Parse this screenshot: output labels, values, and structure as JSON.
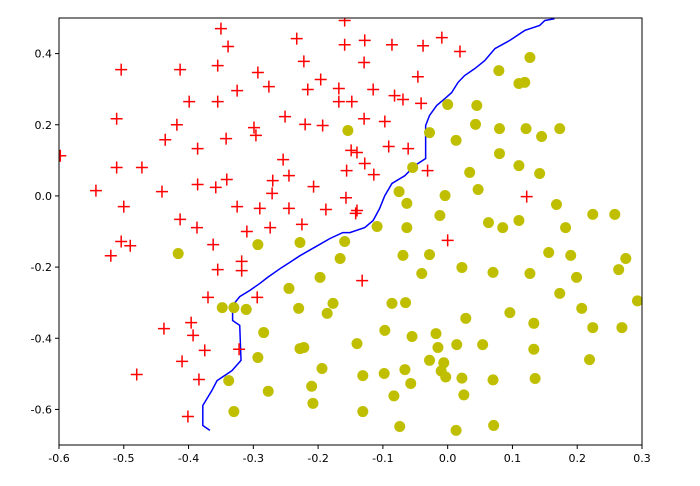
{
  "chart_data": {
    "type": "scatter",
    "xlim": [
      -0.6,
      0.3
    ],
    "ylim": [
      -0.7,
      0.5
    ],
    "xticks": [
      -0.6,
      -0.5,
      -0.4,
      -0.3,
      -0.2,
      -0.1,
      {
        "value": 0,
        "label": "0.0"
      },
      0.1,
      0.2,
      0.3
    ],
    "yticks": [
      -0.6,
      -0.4,
      -0.2,
      {
        "value": 0,
        "label": "0.0"
      },
      0.2,
      0.4
    ],
    "series": [
      {
        "type": "line",
        "color": "#0000ff",
        "x": [
          0.165,
          0.15,
          0.142,
          0.119,
          0.096,
          0.073,
          0.057,
          0.042,
          0.026,
          0.016,
          0.006,
          -0.004,
          -0.017,
          -0.028,
          -0.034,
          -0.034,
          -0.051,
          -0.066,
          -0.086,
          -0.097,
          -0.105,
          -0.115,
          -0.128,
          -0.151,
          -0.162,
          -0.182,
          -0.203,
          -0.228,
          -0.244,
          -0.256,
          -0.278,
          -0.29,
          -0.305,
          -0.321,
          -0.332,
          -0.332,
          -0.321,
          -0.319,
          -0.333,
          -0.356,
          -0.364,
          -0.378,
          -0.378,
          -0.367
        ],
        "y": [
          0.498,
          0.493,
          0.479,
          0.465,
          0.437,
          0.414,
          0.38,
          0.358,
          0.338,
          0.319,
          0.29,
          0.274,
          0.254,
          0.226,
          0.198,
          0.105,
          0.085,
          0.057,
          0.035,
          0.001,
          -0.035,
          -0.069,
          -0.089,
          -0.103,
          -0.103,
          -0.12,
          -0.142,
          -0.168,
          -0.187,
          -0.201,
          -0.229,
          -0.246,
          -0.265,
          -0.283,
          -0.308,
          -0.35,
          -0.364,
          -0.462,
          -0.491,
          -0.519,
          -0.547,
          -0.589,
          -0.645,
          -0.659
        ]
      },
      {
        "type": "scatter",
        "marker": "+",
        "color": "#ff0000",
        "x": [
          -0.598,
          -0.504,
          -0.511,
          -0.511,
          -0.5,
          -0.543,
          -0.472,
          -0.52,
          -0.504,
          -0.49,
          -0.48,
          -0.413,
          -0.399,
          -0.436,
          -0.418,
          -0.441,
          -0.386,
          -0.386,
          -0.413,
          -0.387,
          -0.362,
          -0.355,
          -0.358,
          -0.355,
          -0.35,
          -0.339,
          -0.355,
          -0.325,
          -0.342,
          -0.341,
          -0.325,
          -0.318,
          -0.293,
          -0.299,
          -0.296,
          -0.31,
          -0.318,
          -0.294,
          -0.37,
          -0.393,
          -0.438,
          -0.396,
          -0.41,
          -0.375,
          -0.384,
          -0.401,
          -0.322,
          -0.233,
          -0.222,
          -0.196,
          -0.216,
          -0.168,
          -0.168,
          -0.251,
          -0.276,
          -0.22,
          -0.193,
          -0.254,
          -0.245,
          -0.27,
          -0.271,
          -0.29,
          -0.274,
          -0.245,
          -0.225,
          -0.207,
          -0.188,
          -0.159,
          -0.159,
          -0.128,
          -0.129,
          -0.148,
          -0.129,
          -0.149,
          -0.156,
          -0.14,
          -0.128,
          -0.14,
          -0.157,
          -0.142,
          -0.115,
          -0.114,
          -0.086,
          -0.097,
          -0.082,
          -0.069,
          -0.061,
          -0.038,
          -0.009,
          -0.046,
          -0.041,
          0.019,
          -0.031,
          0.0,
          0.122,
          -0.132,
          -0.091
        ],
        "y": [
          0.113,
          0.355,
          0.217,
          0.08,
          -0.03,
          0.015,
          0.08,
          -0.168,
          -0.128,
          -0.14,
          -0.502,
          0.355,
          0.265,
          0.158,
          0.2,
          0.012,
          0.133,
          0.032,
          -0.066,
          -0.089,
          -0.137,
          -0.207,
          0.024,
          0.265,
          0.47,
          0.42,
          0.366,
          0.296,
          0.161,
          0.046,
          -0.03,
          -0.184,
          0.347,
          0.192,
          0.17,
          -0.1,
          -0.21,
          -0.285,
          -0.285,
          -0.392,
          -0.373,
          -0.356,
          -0.465,
          -0.434,
          -0.516,
          -0.62,
          -0.431,
          0.442,
          0.378,
          0.327,
          0.299,
          0.302,
          0.265,
          0.223,
          0.307,
          0.201,
          0.198,
          0.102,
          0.057,
          0.043,
          0.007,
          -0.035,
          -0.089,
          -0.035,
          -0.08,
          0.026,
          -0.038,
          0.493,
          0.425,
          0.437,
          0.375,
          0.265,
          0.217,
          0.128,
          0.071,
          0.122,
          0.091,
          -0.041,
          -0.005,
          -0.049,
          0.299,
          0.06,
          0.425,
          0.209,
          0.282,
          0.271,
          0.133,
          0.422,
          0.445,
          0.335,
          0.26,
          0.406,
          0.071,
          -0.125,
          -0.002,
          -0.238,
          0.139
        ]
      },
      {
        "type": "scatter",
        "marker": "o",
        "color": "#bfbf00",
        "x": [
          -0.154,
          -0.028,
          0.0,
          0.045,
          0.043,
          0.079,
          0.127,
          0.11,
          0.119,
          0.08,
          0.121,
          0.145,
          0.173,
          0.013,
          0.08,
          0.11,
          0.142,
          0.034,
          0.047,
          -0.054,
          -0.075,
          -0.063,
          -0.004,
          -0.012,
          0.063,
          0.085,
          0.11,
          0.168,
          0.182,
          0.224,
          0.258,
          -0.159,
          -0.228,
          -0.293,
          -0.166,
          -0.063,
          -0.109,
          -0.028,
          -0.069,
          -0.04,
          0.022,
          0.07,
          0.127,
          0.156,
          0.19,
          0.199,
          0.275,
          0.264,
          0.173,
          0.207,
          0.224,
          0.219,
          0.133,
          0.096,
          0.028,
          -0.086,
          -0.197,
          -0.177,
          -0.23,
          -0.186,
          -0.245,
          -0.311,
          -0.348,
          -0.284,
          -0.293,
          -0.228,
          -0.222,
          -0.338,
          -0.277,
          -0.21,
          -0.194,
          -0.208,
          -0.14,
          -0.097,
          -0.055,
          -0.065,
          -0.018,
          -0.015,
          0.014,
          0.054,
          0.133,
          0.135,
          -0.028,
          -0.131,
          -0.098,
          -0.066,
          -0.057,
          -0.01,
          -0.003,
          -0.006,
          0.022,
          0.07,
          0.025,
          -0.083,
          -0.131,
          -0.33,
          -0.074,
          0.013,
          0.071,
          0.293,
          -0.416,
          -0.33,
          0.269
        ],
        "y": [
          0.184,
          0.178,
          0.257,
          0.254,
          0.201,
          0.352,
          0.389,
          0.316,
          0.319,
          0.189,
          0.189,
          0.167,
          0.189,
          0.156,
          0.119,
          0.085,
          0.063,
          0.066,
          0.018,
          0.08,
          0.012,
          -0.021,
          0.001,
          -0.055,
          -0.075,
          -0.089,
          -0.069,
          -0.024,
          -0.089,
          -0.052,
          -0.052,
          -0.128,
          -0.131,
          -0.137,
          -0.176,
          -0.089,
          -0.086,
          -0.165,
          -0.167,
          -0.218,
          -0.201,
          -0.215,
          -0.218,
          -0.159,
          -0.167,
          -0.229,
          -0.176,
          -0.207,
          -0.274,
          -0.316,
          -0.37,
          -0.46,
          -0.358,
          -0.328,
          -0.344,
          -0.302,
          -0.229,
          -0.302,
          -0.316,
          -0.33,
          -0.26,
          -0.319,
          -0.314,
          -0.384,
          -0.454,
          -0.429,
          -0.426,
          -0.519,
          -0.549,
          -0.535,
          -0.485,
          -0.583,
          -0.415,
          -0.378,
          -0.395,
          -0.3,
          -0.387,
          -0.426,
          -0.418,
          -0.418,
          -0.431,
          -0.513,
          -0.462,
          -0.505,
          -0.499,
          -0.488,
          -0.527,
          -0.492,
          -0.509,
          -0.469,
          -0.512,
          -0.517,
          -0.559,
          -0.562,
          -0.606,
          -0.606,
          -0.648,
          -0.659,
          -0.645,
          -0.295,
          -0.162,
          -0.314,
          -0.37
        ]
      }
    ]
  }
}
